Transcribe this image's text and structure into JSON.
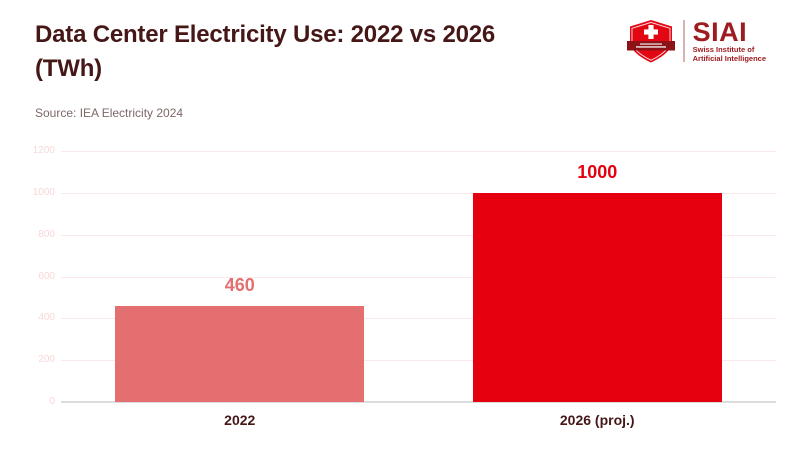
{
  "header": {
    "title_line1": "Data Center Electricity Use: 2022 vs 2026",
    "title_line2": "(TWh)",
    "source": "Source: IEA Electricity 2024"
  },
  "logo": {
    "shield_icon": "swiss-shield-icon",
    "acronym": "SIAI",
    "name_line1": "Swiss Institute of",
    "name_line2": "Artificial Intelligence"
  },
  "colors": {
    "title_text": "#451717",
    "source_text": "#7d6868",
    "bar_2022": "#e36f70",
    "bar_2026": "#e6000f",
    "gridline": "#fbe9ea",
    "axis_line": "#dcdcdc",
    "tick_label": "#f8d8d8",
    "logo_red": "#9e1b20",
    "shield_red": "#e30613",
    "banner_dark_red": "#8c1318"
  },
  "chart_data": {
    "type": "bar",
    "title": "Data Center Electricity Use: 2022 vs 2026 (TWh)",
    "source": "Source: IEA Electricity 2024",
    "categories": [
      "2022",
      "2026 (proj.)"
    ],
    "values": [
      460,
      1000
    ],
    "value_labels": [
      "460",
      "1000"
    ],
    "bar_colors": [
      "#e36f70",
      "#e6000f"
    ],
    "xlabel": "",
    "ylabel": "",
    "ylim": [
      0,
      1200
    ],
    "yticks": [
      0,
      200,
      400,
      600,
      800,
      1000,
      1200
    ],
    "grid": true,
    "legend": false
  }
}
